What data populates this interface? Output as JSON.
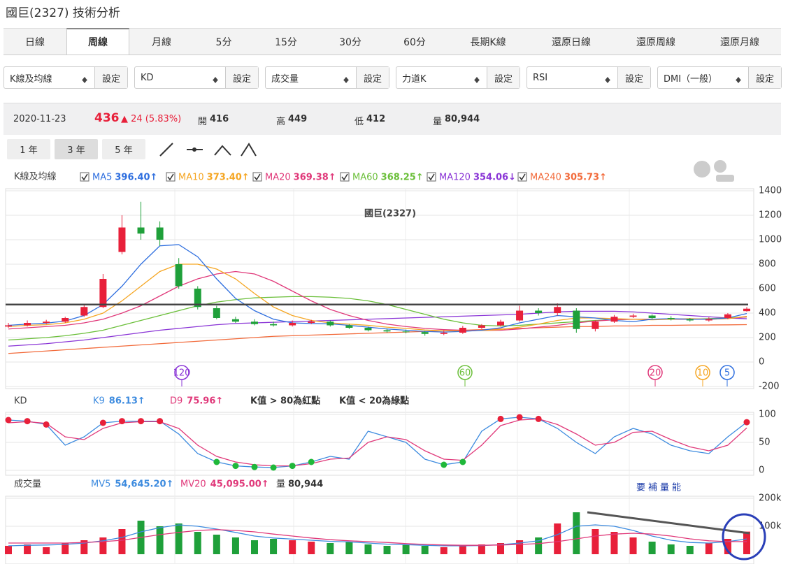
{
  "title": "國巨(2327) 技術分析",
  "tabs": [
    "日線",
    "周線",
    "月線",
    "5分",
    "15分",
    "30分",
    "60分",
    "長期K線",
    "還原日線",
    "還原周線",
    "還原月線"
  ],
  "active_tab": 1,
  "selectors": [
    {
      "label": "K線及均線",
      "button": "設定"
    },
    {
      "label": "KD",
      "button": "設定"
    },
    {
      "label": "成交量",
      "button": "設定"
    },
    {
      "label": "力道K",
      "button": "設定"
    },
    {
      "label": "RSI",
      "button": "設定"
    },
    {
      "label": "DMI（一般）",
      "button": "設定"
    }
  ],
  "quote": {
    "date": "2020-11-23",
    "price": "436",
    "change": "▲ 24 (5.83%)",
    "open_label": "開",
    "open": "416",
    "high_label": "高",
    "high": "449",
    "low_label": "低",
    "low": "412",
    "volume_label": "量",
    "volume": "80,944"
  },
  "ranges": [
    "1 年",
    "3 年",
    "5 年"
  ],
  "active_range": 1,
  "price_chart": {
    "label": "K線及均線",
    "title": "國巨(2327)",
    "ylim": [
      -200,
      1400
    ],
    "yticks": [
      -200,
      0,
      200,
      400,
      600,
      800,
      1000,
      1200,
      1400
    ],
    "up_color": "#e8203a",
    "down_color": "#1fa03a",
    "support_line": 470,
    "open": [
      290,
      300,
      320,
      330,
      380,
      450,
      900,
      1100,
      1100,
      800,
      600,
      440,
      350,
      330,
      310,
      300,
      320,
      330,
      300,
      280,
      260,
      250,
      245,
      230,
      240,
      280,
      300,
      340,
      420,
      400,
      420,
      270,
      330,
      370,
      380,
      360,
      350,
      340,
      360,
      416
    ],
    "high": [
      320,
      340,
      345,
      370,
      470,
      720,
      1200,
      1310,
      1150,
      850,
      620,
      460,
      370,
      350,
      330,
      340,
      345,
      340,
      310,
      290,
      275,
      265,
      255,
      260,
      295,
      310,
      345,
      460,
      440,
      480,
      440,
      340,
      385,
      395,
      390,
      375,
      360,
      365,
      400,
      449
    ],
    "low": [
      280,
      290,
      310,
      320,
      370,
      440,
      880,
      1000,
      950,
      600,
      430,
      350,
      320,
      300,
      290,
      290,
      310,
      290,
      270,
      250,
      240,
      235,
      215,
      220,
      230,
      270,
      290,
      330,
      380,
      380,
      240,
      250,
      320,
      360,
      350,
      340,
      330,
      330,
      350,
      412
    ],
    "close": [
      300,
      320,
      330,
      360,
      450,
      680,
      1100,
      1050,
      1000,
      620,
      450,
      360,
      330,
      310,
      300,
      320,
      330,
      300,
      280,
      260,
      250,
      245,
      230,
      240,
      280,
      300,
      330,
      420,
      400,
      450,
      270,
      330,
      370,
      380,
      360,
      350,
      340,
      350,
      390,
      436
    ],
    "ma": [
      {
        "name": "MA5",
        "value_label": "396.40↑",
        "color": "#2f6fdf",
        "values": [
          300,
          310,
          318,
          335,
          380,
          470,
          620,
          800,
          950,
          960,
          860,
          680,
          520,
          420,
          350,
          320,
          315,
          312,
          300,
          285,
          270,
          260,
          250,
          245,
          250,
          260,
          280,
          320,
          350,
          380,
          370,
          360,
          340,
          330,
          350,
          355,
          350,
          350,
          360,
          396.4
        ]
      },
      {
        "name": "MA10",
        "value_label": "373.40↑",
        "color": "#f5a623",
        "values": [
          290,
          300,
          305,
          320,
          350,
          400,
          500,
          620,
          740,
          800,
          800,
          760,
          680,
          560,
          450,
          380,
          340,
          320,
          310,
          300,
          285,
          275,
          262,
          255,
          255,
          258,
          265,
          285,
          310,
          340,
          360,
          360,
          355,
          350,
          345,
          350,
          355,
          350,
          355,
          373.4
        ]
      },
      {
        "name": "MA20",
        "value_label": "369.38↑",
        "color": "#e0397a",
        "values": [
          270,
          280,
          290,
          300,
          320,
          350,
          400,
          460,
          540,
          620,
          680,
          720,
          740,
          720,
          660,
          580,
          500,
          430,
          380,
          340,
          310,
          290,
          275,
          265,
          260,
          258,
          260,
          270,
          285,
          300,
          320,
          335,
          345,
          350,
          350,
          350,
          350,
          350,
          355,
          369.38
        ]
      },
      {
        "name": "MA60",
        "value_label": "368.25↑",
        "color": "#6bbf3a",
        "values": [
          180,
          190,
          200,
          215,
          235,
          260,
          300,
          340,
          380,
          420,
          460,
          490,
          510,
          525,
          530,
          535,
          535,
          530,
          520,
          500,
          470,
          430,
          390,
          350,
          320,
          300,
          295,
          300,
          310,
          320,
          330,
          340,
          345,
          350,
          350,
          350,
          350,
          355,
          360,
          368.25
        ]
      },
      {
        "name": "MA120",
        "value_label": "354.06↓",
        "color": "#8a35d6",
        "values": [
          130,
          140,
          150,
          165,
          180,
          200,
          220,
          240,
          260,
          275,
          290,
          305,
          315,
          320,
          325,
          330,
          335,
          340,
          345,
          350,
          355,
          360,
          365,
          370,
          375,
          380,
          385,
          390,
          400,
          410,
          415,
          415,
          415,
          410,
          400,
          390,
          380,
          370,
          360,
          354.06
        ]
      },
      {
        "name": "MA240",
        "value_label": "305.73↑",
        "color": "#f26a3a",
        "values": [
          70,
          80,
          90,
          100,
          110,
          120,
          130,
          140,
          150,
          160,
          170,
          180,
          190,
          200,
          210,
          215,
          220,
          225,
          230,
          235,
          240,
          245,
          250,
          255,
          260,
          265,
          270,
          275,
          280,
          285,
          290,
          290,
          295,
          295,
          300,
          300,
          302,
          303,
          304,
          305.73
        ]
      }
    ],
    "markers": [
      {
        "label": "120",
        "color": "#8a35d6"
      },
      {
        "label": "60",
        "color": "#6bbf3a"
      },
      {
        "label": "20",
        "color": "#e0397a"
      },
      {
        "label": "10",
        "color": "#f5a623"
      },
      {
        "label": "5",
        "color": "#2f6fdf"
      }
    ]
  },
  "kd_chart": {
    "label": "KD",
    "ylim": [
      0,
      100
    ],
    "yticks": [
      0,
      50,
      100
    ],
    "red_above": 80,
    "green_below": 20,
    "red_dot": "#e8203a",
    "green_dot": "#1fb83a",
    "notes": [
      "K值 > 80為紅點",
      "K值 < 20為綠點"
    ],
    "series": [
      {
        "name": "K9",
        "value_label": "86.13↑",
        "color": "#3d8bdf",
        "values": [
          90,
          88,
          82,
          45,
          60,
          85,
          88,
          88,
          88,
          65,
          30,
          15,
          8,
          6,
          5,
          8,
          15,
          25,
          20,
          70,
          60,
          50,
          20,
          10,
          15,
          70,
          92,
          95,
          92,
          75,
          50,
          30,
          60,
          75,
          65,
          45,
          35,
          30,
          60,
          86.13
        ]
      },
      {
        "name": "D9",
        "value_label": "75.96↑",
        "color": "#e0397a",
        "values": [
          85,
          87,
          84,
          60,
          55,
          75,
          85,
          87,
          87,
          75,
          45,
          25,
          15,
          10,
          8,
          8,
          12,
          20,
          22,
          50,
          60,
          55,
          35,
          20,
          18,
          45,
          80,
          90,
          92,
          82,
          65,
          45,
          50,
          68,
          70,
          55,
          42,
          35,
          45,
          75.96
        ]
      }
    ]
  },
  "volume_chart": {
    "label": "成交量",
    "total_label": "量",
    "total_value": "80,944",
    "annotation": "要補量能",
    "ylim": [
      0,
      200000
    ],
    "yticks": [
      {
        "value": 100000,
        "label": "100k"
      },
      {
        "value": 200000,
        "label": "200k"
      }
    ],
    "values": [
      30000,
      35000,
      25000,
      40000,
      50000,
      60000,
      90000,
      120000,
      100000,
      110000,
      80000,
      70000,
      60000,
      50000,
      55000,
      50000,
      45000,
      40000,
      45000,
      35000,
      30000,
      35000,
      30000,
      25000,
      30000,
      35000,
      40000,
      50000,
      60000,
      110000,
      150000,
      90000,
      80000,
      60000,
      45000,
      35000,
      30000,
      40000,
      55000,
      80944
    ],
    "series": [
      {
        "name": "MV5",
        "value_label": "54,645.20↑",
        "color": "#3d8bdf",
        "values": [
          30000,
          32000,
          33000,
          35000,
          40000,
          48000,
          60000,
          80000,
          95000,
          105000,
          100000,
          90000,
          78000,
          65000,
          58000,
          54000,
          50000,
          46000,
          44000,
          40000,
          36000,
          34000,
          32000,
          30000,
          30000,
          31000,
          34000,
          40000,
          48000,
          70000,
          100000,
          105000,
          100000,
          85000,
          65000,
          50000,
          42000,
          40000,
          45000,
          54645.2
        ]
      },
      {
        "name": "MV20",
        "value_label": "45,095.00↑",
        "color": "#e0397a",
        "values": [
          40000,
          40000,
          40000,
          40000,
          42000,
          45000,
          50000,
          60000,
          70000,
          78000,
          85000,
          88000,
          85000,
          80000,
          72000,
          65000,
          58000,
          52000,
          48000,
          45000,
          42000,
          38000,
          35000,
          33000,
          32000,
          32000,
          33000,
          35000,
          38000,
          45000,
          55000,
          65000,
          72000,
          75000,
          72000,
          65000,
          55000,
          48000,
          45000,
          45095
        ]
      }
    ]
  }
}
